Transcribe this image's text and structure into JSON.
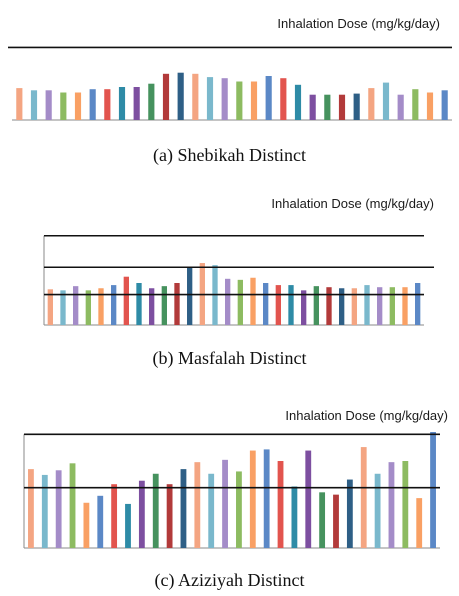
{
  "colors": [
    "#F4A582",
    "#7AB8CC",
    "#A48CC8",
    "#8DBB61",
    "#F9A064",
    "#5B88C6",
    "#E2544E",
    "#2E8BA6",
    "#7D4FA0",
    "#46925E",
    "#B23A3A",
    "#2E5F86"
  ],
  "chart_data": [
    {
      "type": "bar",
      "title": "Inhalation Dose (mg/kg/day)",
      "caption": "(a) Shebikah Distinct",
      "grid": false,
      "values": [
        0.29,
        0.27,
        0.27,
        0.25,
        0.25,
        0.28,
        0.28,
        0.3,
        0.3,
        0.33,
        0.42,
        0.43,
        0.42,
        0.39,
        0.38,
        0.35,
        0.35,
        0.4,
        0.38,
        0.32,
        0.23,
        0.23,
        0.23,
        0.24,
        0.29,
        0.34,
        0.23,
        0.28,
        0.25,
        0.27
      ],
      "reference_lines": [
        0.66
      ]
    },
    {
      "type": "bar",
      "title": "Inhalation Dose (mg/kg/day)",
      "caption": "(b) Masfalah Distinct",
      "grid": false,
      "values": [
        0.34,
        0.33,
        0.37,
        0.33,
        0.35,
        0.38,
        0.46,
        0.4,
        0.35,
        0.37,
        0.4,
        0.55,
        0.59,
        0.57,
        0.44,
        0.43,
        0.45,
        0.4,
        0.38,
        0.38,
        0.33,
        0.37,
        0.36,
        0.35,
        0.35,
        0.38,
        0.36,
        0.36,
        0.36,
        0.4
      ],
      "reference_lines": [
        0.55,
        0.85,
        0.29
      ]
    },
    {
      "type": "bar",
      "title": "Inhalation Dose (mg/kg/day)",
      "caption": "(c) Aziziyah Distinct",
      "grid": false,
      "values": [
        0.68,
        0.63,
        0.67,
        0.73,
        0.39,
        0.45,
        0.55,
        0.38,
        0.58,
        0.64,
        0.55,
        0.68,
        0.74,
        0.64,
        0.76,
        0.66,
        0.84,
        0.85,
        0.75,
        0.53,
        0.84,
        0.48,
        0.46,
        0.59,
        0.87,
        0.64,
        0.74,
        0.75,
        0.43,
        1.0
      ],
      "reference_lines": [
        0.98,
        0.52
      ]
    }
  ]
}
